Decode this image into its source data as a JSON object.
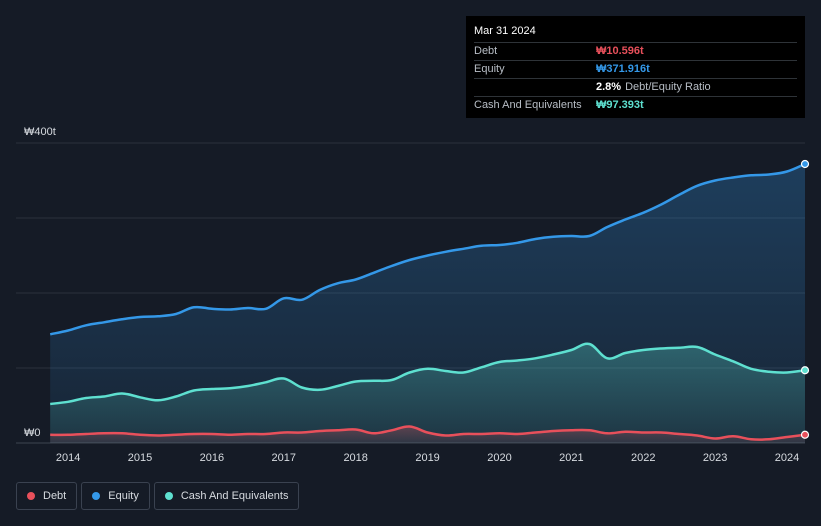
{
  "tooltip": {
    "date": "Mar 31 2024",
    "rows": [
      {
        "label": "Debt",
        "value": "₩10.596t",
        "color": "#e8505b"
      },
      {
        "label": "Equity",
        "value": "₩371.916t",
        "color": "#3498e8"
      },
      {
        "label": "",
        "value": "2.8%",
        "suffix": "Debt/Equity Ratio",
        "color": "#ffffff"
      },
      {
        "label": "Cash And Equivalents",
        "value": "₩97.393t",
        "color": "#5ee0d0"
      }
    ]
  },
  "legend": [
    {
      "label": "Debt",
      "color": "#e8505b"
    },
    {
      "label": "Equity",
      "color": "#3498e8"
    },
    {
      "label": "Cash And Equivalents",
      "color": "#5ee0d0"
    }
  ],
  "chart_data": {
    "type": "area",
    "y_unit": "₩ trillion",
    "ylim": [
      0,
      400
    ],
    "y_tick_labels": [
      {
        "value": 400,
        "label": "₩400t"
      },
      {
        "value": 0,
        "label": "₩0"
      }
    ],
    "xlim": [
      2013.72,
      2024.25
    ],
    "x_ticks": [
      2014,
      2015,
      2016,
      2017,
      2018,
      2019,
      2020,
      2021,
      2022,
      2023,
      2024
    ],
    "grid": true,
    "series": [
      {
        "name": "Equity",
        "color": "#3498e8",
        "points": [
          [
            2013.75,
            145
          ],
          [
            2014.0,
            150
          ],
          [
            2014.25,
            157
          ],
          [
            2014.5,
            161
          ],
          [
            2014.75,
            165
          ],
          [
            2015.0,
            168
          ],
          [
            2015.25,
            169
          ],
          [
            2015.5,
            172
          ],
          [
            2015.75,
            181
          ],
          [
            2016.0,
            179
          ],
          [
            2016.25,
            178
          ],
          [
            2016.5,
            180
          ],
          [
            2016.75,
            179
          ],
          [
            2017.0,
            193
          ],
          [
            2017.25,
            191
          ],
          [
            2017.5,
            204
          ],
          [
            2017.75,
            213
          ],
          [
            2018.0,
            218
          ],
          [
            2018.25,
            227
          ],
          [
            2018.5,
            236
          ],
          [
            2018.75,
            244
          ],
          [
            2019.0,
            250
          ],
          [
            2019.25,
            255
          ],
          [
            2019.5,
            259
          ],
          [
            2019.75,
            263
          ],
          [
            2020.0,
            264
          ],
          [
            2020.25,
            267
          ],
          [
            2020.5,
            272
          ],
          [
            2020.75,
            275
          ],
          [
            2021.0,
            276
          ],
          [
            2021.25,
            276
          ],
          [
            2021.5,
            288
          ],
          [
            2021.75,
            298
          ],
          [
            2022.0,
            307
          ],
          [
            2022.25,
            318
          ],
          [
            2022.5,
            331
          ],
          [
            2022.75,
            343
          ],
          [
            2023.0,
            350
          ],
          [
            2023.25,
            354
          ],
          [
            2023.5,
            357
          ],
          [
            2023.75,
            358
          ],
          [
            2024.0,
            362
          ],
          [
            2024.25,
            372
          ]
        ]
      },
      {
        "name": "Cash And Equivalents",
        "color": "#5ee0d0",
        "points": [
          [
            2013.75,
            52
          ],
          [
            2014.0,
            55
          ],
          [
            2014.25,
            60
          ],
          [
            2014.5,
            62
          ],
          [
            2014.75,
            66
          ],
          [
            2015.0,
            61
          ],
          [
            2015.25,
            57
          ],
          [
            2015.5,
            62
          ],
          [
            2015.75,
            70
          ],
          [
            2016.0,
            72
          ],
          [
            2016.25,
            73
          ],
          [
            2016.5,
            76
          ],
          [
            2016.75,
            81
          ],
          [
            2017.0,
            86
          ],
          [
            2017.25,
            74
          ],
          [
            2017.5,
            71
          ],
          [
            2017.75,
            76
          ],
          [
            2018.0,
            82
          ],
          [
            2018.25,
            83
          ],
          [
            2018.5,
            84
          ],
          [
            2018.75,
            94
          ],
          [
            2019.0,
            99
          ],
          [
            2019.25,
            96
          ],
          [
            2019.5,
            94
          ],
          [
            2019.75,
            101
          ],
          [
            2020.0,
            108
          ],
          [
            2020.25,
            110
          ],
          [
            2020.5,
            113
          ],
          [
            2020.75,
            118
          ],
          [
            2021.0,
            124
          ],
          [
            2021.25,
            132
          ],
          [
            2021.5,
            113
          ],
          [
            2021.75,
            120
          ],
          [
            2022.0,
            124
          ],
          [
            2022.25,
            126
          ],
          [
            2022.5,
            127
          ],
          [
            2022.75,
            128
          ],
          [
            2023.0,
            118
          ],
          [
            2023.25,
            109
          ],
          [
            2023.5,
            99
          ],
          [
            2023.75,
            95
          ],
          [
            2024.0,
            94
          ],
          [
            2024.25,
            97
          ]
        ]
      },
      {
        "name": "Debt",
        "color": "#e8505b",
        "points": [
          [
            2013.75,
            11
          ],
          [
            2014.0,
            11
          ],
          [
            2014.25,
            12
          ],
          [
            2014.5,
            13
          ],
          [
            2014.75,
            13
          ],
          [
            2015.0,
            11
          ],
          [
            2015.25,
            10
          ],
          [
            2015.5,
            11
          ],
          [
            2015.75,
            12
          ],
          [
            2016.0,
            12
          ],
          [
            2016.25,
            11
          ],
          [
            2016.5,
            12
          ],
          [
            2016.75,
            12
          ],
          [
            2017.0,
            14
          ],
          [
            2017.25,
            14
          ],
          [
            2017.5,
            16
          ],
          [
            2017.75,
            17
          ],
          [
            2018.0,
            18
          ],
          [
            2018.25,
            13
          ],
          [
            2018.5,
            17
          ],
          [
            2018.75,
            22
          ],
          [
            2019.0,
            14
          ],
          [
            2019.25,
            10
          ],
          [
            2019.5,
            12
          ],
          [
            2019.75,
            12
          ],
          [
            2020.0,
            13
          ],
          [
            2020.25,
            12
          ],
          [
            2020.5,
            14
          ],
          [
            2020.75,
            16
          ],
          [
            2021.0,
            17
          ],
          [
            2021.25,
            17
          ],
          [
            2021.5,
            13
          ],
          [
            2021.75,
            15
          ],
          [
            2022.0,
            14
          ],
          [
            2022.25,
            14
          ],
          [
            2022.5,
            12
          ],
          [
            2022.75,
            10
          ],
          [
            2023.0,
            6
          ],
          [
            2023.25,
            9
          ],
          [
            2023.5,
            5
          ],
          [
            2023.75,
            5
          ],
          [
            2024.0,
            8
          ],
          [
            2024.25,
            11
          ]
        ]
      }
    ]
  }
}
